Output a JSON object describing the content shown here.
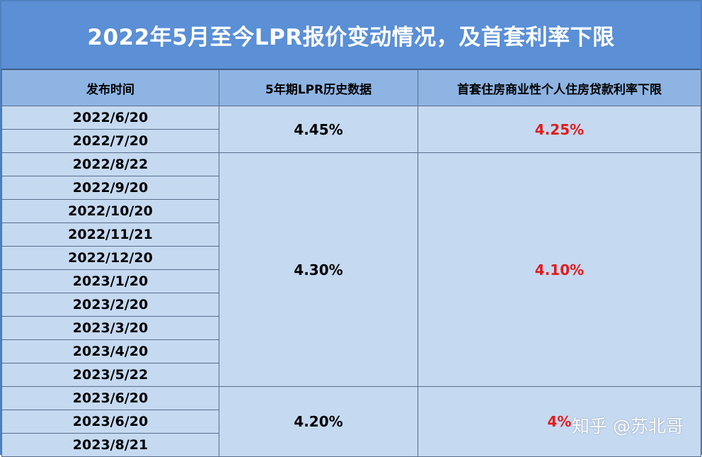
{
  "title": "2022年5月至今LPR报价变动情况，及首套利率下限",
  "headers": {
    "date": "发布时间",
    "lpr": "5年期LPR历史数据",
    "floor": "首套住房商业性个人住房贷款利率下限"
  },
  "groups": [
    {
      "dates": [
        "2022/6/20",
        "2022/7/20"
      ],
      "lpr": "4.45%",
      "floor": "4.25%"
    },
    {
      "dates": [
        "2022/8/22",
        "2022/9/20",
        "2022/10/20",
        "2022/11/21",
        "2022/12/20",
        "2023/1/20",
        "2023/2/20",
        "2023/3/20",
        "2023/4/20",
        "2023/5/22"
      ],
      "lpr": "4.30%",
      "floor": "4.10%"
    },
    {
      "dates": [
        "2023/6/20",
        "2023/6/20",
        "2023/8/21"
      ],
      "lpr": "4.20%",
      "floor": "4%"
    }
  ],
  "watermark": "知乎 @苏北哥",
  "colors": {
    "title_bg": "#5b8fd6",
    "header_bg": "#8eb4e3",
    "cell_bg": "#c5d9f1",
    "floor_text": "#e01b1b"
  }
}
